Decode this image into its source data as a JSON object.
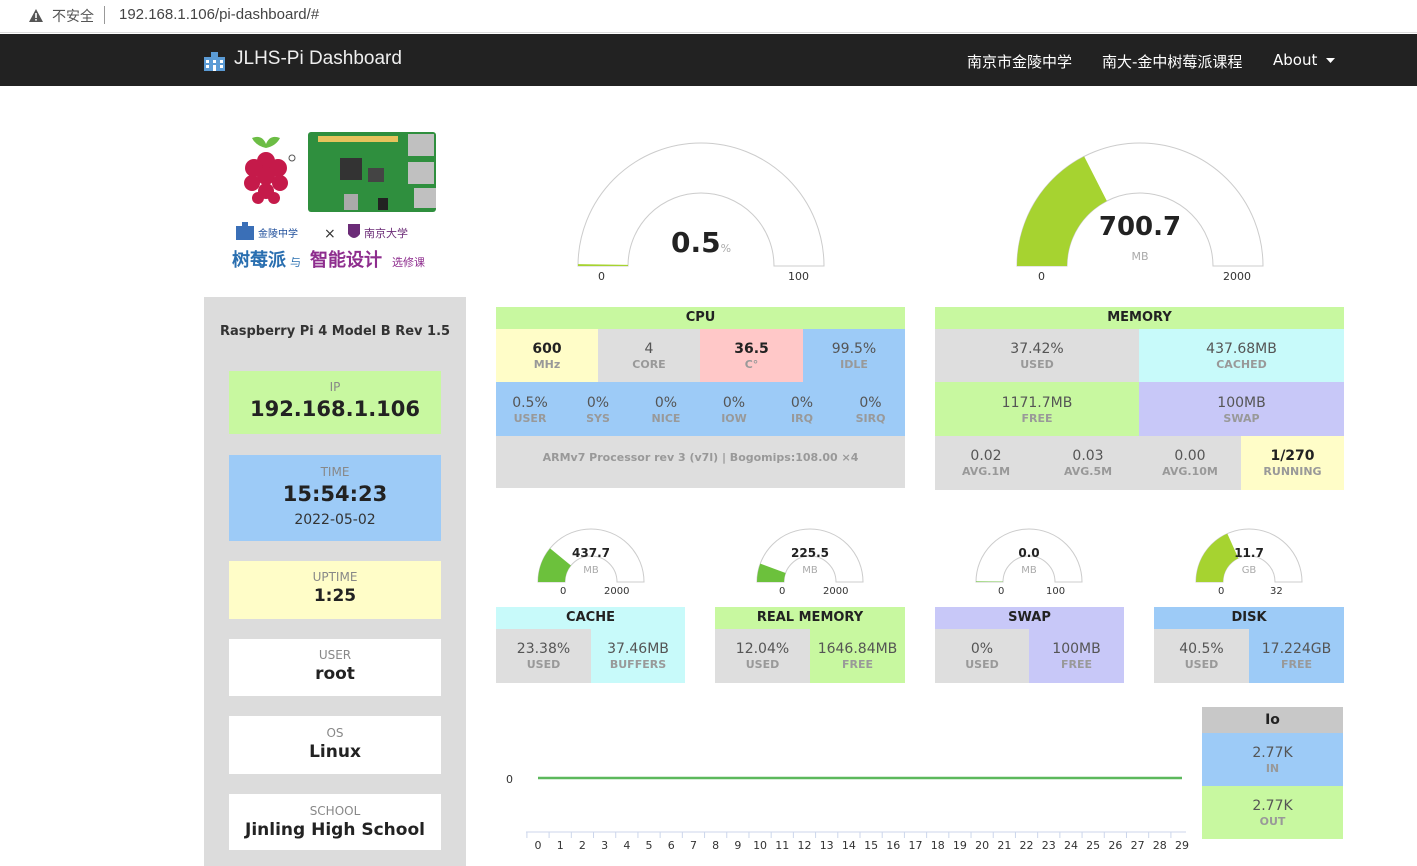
{
  "browser": {
    "insecure": "不安全",
    "url": "192.168.1.106/pi-dashboard/#"
  },
  "navbar": {
    "brand": "JLHS-Pi Dashboard",
    "links": [
      "南京市金陵中学",
      "南大-金中树莓派课程",
      "About"
    ]
  },
  "logo": {
    "caption_main": "树莓派",
    "caption_and": "与",
    "caption_smart": "智能设计",
    "caption_course": "选修课",
    "school_a": "金陵中学",
    "school_b": "南京大学",
    "times": "×"
  },
  "sidebar": {
    "model": "Raspberry Pi 4 Model B Rev 1.5",
    "ip_label": "IP",
    "ip": "192.168.1.106",
    "time_label": "TIME",
    "time": "15:54:23",
    "date": "2022-05-02",
    "uptime_label": "UPTIME",
    "uptime": "1:25",
    "user_label": "USER",
    "user": "root",
    "os_label": "OS",
    "os": "Linux",
    "school_label": "SCHOOL",
    "school": "Jinling High School"
  },
  "gauges": {
    "cpu": {
      "value": "0.5",
      "unit": "%",
      "min": "0",
      "max": "100",
      "fraction": 0.005,
      "color": "#a6d330"
    },
    "memory": {
      "value": "700.7",
      "unit": "MB",
      "min": "0",
      "max": "2000",
      "fraction": 0.35,
      "color": "#a6d330"
    },
    "cache": {
      "value": "437.7",
      "unit": "MB",
      "min": "0",
      "max": "2000",
      "fraction": 0.219,
      "color": "#6cc13c"
    },
    "real_memory": {
      "value": "225.5",
      "unit": "MB",
      "min": "0",
      "max": "2000",
      "fraction": 0.113,
      "color": "#6cc13c"
    },
    "swap": {
      "value": "0.0",
      "unit": "MB",
      "min": "0",
      "max": "100",
      "fraction": 0.0,
      "color": "#6cc13c"
    },
    "disk": {
      "value": "11.7",
      "unit": "GB",
      "min": "0",
      "max": "32",
      "fraction": 0.366,
      "color": "#a6d330"
    }
  },
  "cpu": {
    "title": "CPU",
    "freq": "600",
    "freq_l": "MHz",
    "cores": "4",
    "cores_l": "CORE",
    "temp": "36.5",
    "temp_l": "C°",
    "idle": "99.5%",
    "idle_l": "IDLE",
    "stats": [
      {
        "v": "0.5%",
        "l": "USER"
      },
      {
        "v": "0%",
        "l": "SYS"
      },
      {
        "v": "0%",
        "l": "NICE"
      },
      {
        "v": "0%",
        "l": "IOW"
      },
      {
        "v": "0%",
        "l": "IRQ"
      },
      {
        "v": "0%",
        "l": "SIRQ"
      }
    ],
    "info": "ARMv7 Processor rev 3 (v7l) | Bogomips:108.00 ×4"
  },
  "memory": {
    "title": "MEMORY",
    "used": "37.42%",
    "used_l": "USED",
    "cached": "437.68MB",
    "cached_l": "CACHED",
    "free": "1171.7MB",
    "free_l": "FREE",
    "swap": "100MB",
    "swap_l": "SWAP",
    "avg1": "0.02",
    "avg1_l": "AVG.1M",
    "avg5": "0.03",
    "avg5_l": "AVG.5M",
    "avg10": "0.00",
    "avg10_l": "AVG.10M",
    "running": "1/270",
    "running_l": "RUNNING"
  },
  "cache": {
    "title": "CACHE",
    "a": "23.38%",
    "a_l": "USED",
    "b": "37.46MB",
    "b_l": "BUFFERS"
  },
  "real_memory": {
    "title": "REAL MEMORY",
    "a": "12.04%",
    "a_l": "USED",
    "b": "1646.84MB",
    "b_l": "FREE"
  },
  "swap": {
    "title": "SWAP",
    "a": "0%",
    "a_l": "USED",
    "b": "100MB",
    "b_l": "FREE"
  },
  "disk": {
    "title": "DISK",
    "a": "40.5%",
    "a_l": "USED",
    "b": "17.224GB",
    "b_l": "FREE"
  },
  "io": {
    "title": "Io",
    "in": "2.77K",
    "in_l": "IN",
    "out": "2.77K",
    "out_l": "OUT"
  },
  "chart_data": {
    "type": "line",
    "x": [
      0,
      1,
      2,
      3,
      4,
      5,
      6,
      7,
      8,
      9,
      10,
      11,
      12,
      13,
      14,
      15,
      16,
      17,
      18,
      19,
      20,
      21,
      22,
      23,
      24,
      25,
      26,
      27,
      28,
      29
    ],
    "series": [
      {
        "values": [
          0,
          0,
          0,
          0,
          0,
          0,
          0,
          0,
          0,
          0,
          0,
          0,
          0,
          0,
          0,
          0,
          0,
          0,
          0,
          0,
          0,
          0,
          0,
          0,
          0,
          0,
          0,
          0,
          0,
          0
        ],
        "color": "#5cb85c"
      }
    ],
    "y_tick": "0"
  }
}
